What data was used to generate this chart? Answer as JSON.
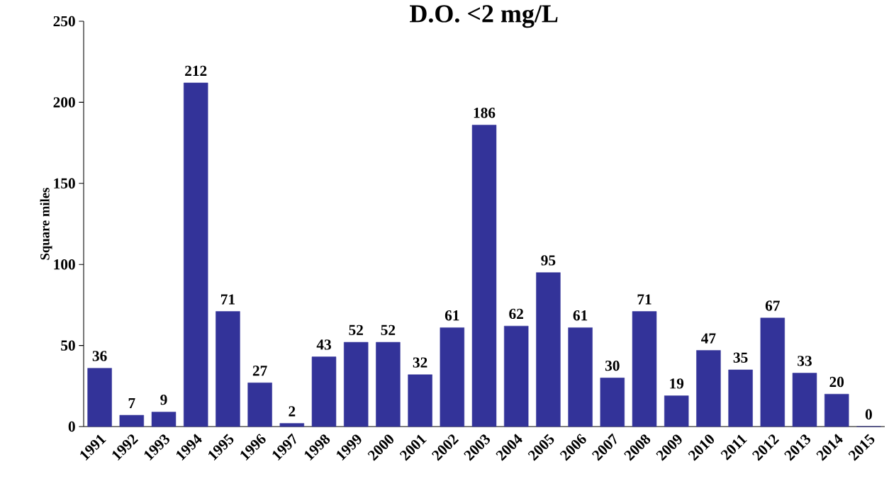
{
  "chart_data": {
    "type": "bar",
    "title": "D.O. <2 mg/L",
    "ylabel": "Square miles",
    "categories": [
      "1991",
      "1992",
      "1993",
      "1994",
      "1995",
      "1996",
      "1997",
      "1998",
      "1999",
      "2000",
      "2001",
      "2002",
      "2003",
      "2004",
      "2005",
      "2006",
      "2007",
      "2008",
      "2009",
      "2010",
      "2011",
      "2012",
      "2013",
      "2014",
      "2015"
    ],
    "values": [
      36,
      7,
      9,
      212,
      71,
      27,
      2,
      43,
      52,
      52,
      32,
      61,
      186,
      62,
      95,
      61,
      30,
      71,
      19,
      47,
      35,
      67,
      33,
      20,
      0
    ],
    "color": "#333399",
    "data_labels": true,
    "ylim": [
      0,
      250
    ],
    "yticks": [
      0,
      50,
      100,
      150,
      200,
      250
    ]
  }
}
